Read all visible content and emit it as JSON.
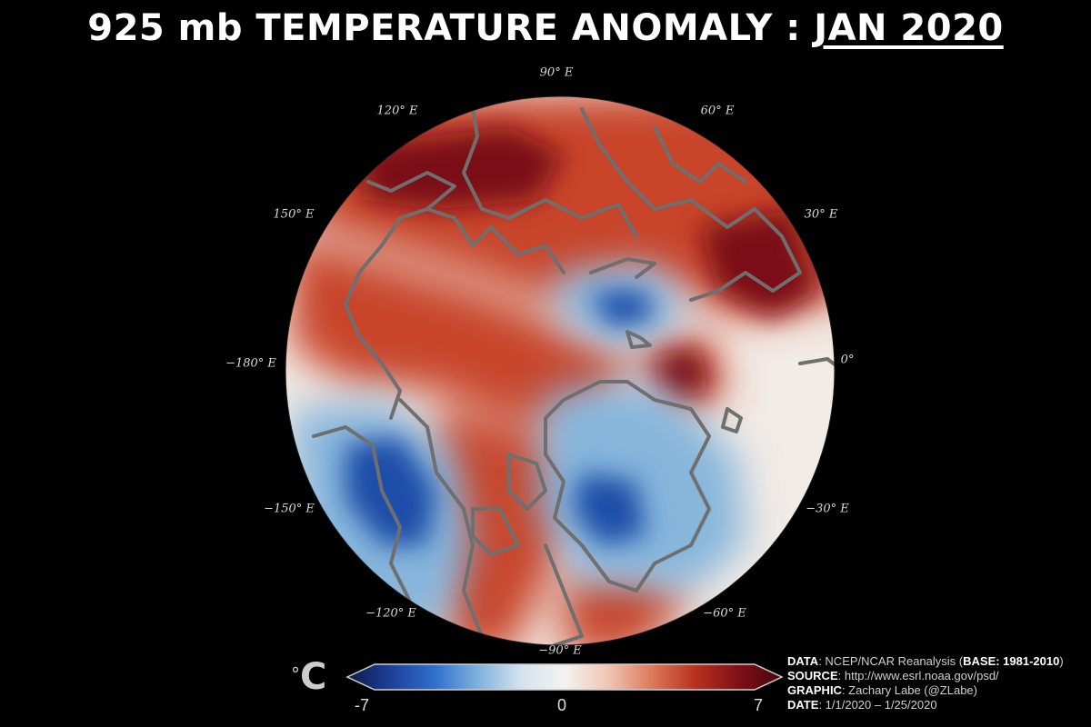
{
  "title": {
    "prefix": "925 mb TEMPERATURE ANOMALY : ",
    "date": "JAN 2020"
  },
  "longitude_labels": [
    {
      "id": "lon-90e",
      "text": "90° E"
    },
    {
      "id": "lon-60e",
      "text": "60° E"
    },
    {
      "id": "lon-120e",
      "text": "120° E"
    },
    {
      "id": "lon-30e",
      "text": "30° E"
    },
    {
      "id": "lon-150e",
      "text": "150° E"
    },
    {
      "id": "lon-0",
      "text": "0°"
    },
    {
      "id": "lon-180e",
      "text": "−180° E"
    },
    {
      "id": "lon-m30e",
      "text": "−30° E"
    },
    {
      "id": "lon-m150e",
      "text": "−150° E"
    },
    {
      "id": "lon-m60e",
      "text": "−60° E"
    },
    {
      "id": "lon-m120e",
      "text": "−120° E"
    },
    {
      "id": "lon-m90e",
      "text": "−90° E"
    }
  ],
  "colorbar": {
    "unit_degree": "°",
    "unit_letter": "C",
    "min_label": "-7",
    "mid_label": "0",
    "max_label": "7",
    "min": -7,
    "max": 7,
    "colors": [
      "#0b1a48",
      "#1e3f9a",
      "#2f6fcc",
      "#7fb0de",
      "#d4e3ef",
      "#f4f2f0",
      "#f0c6b4",
      "#dc7a5c",
      "#b8321f",
      "#801016",
      "#45060a"
    ]
  },
  "credits": {
    "data_label": "DATA",
    "data_value": ": NCEP/NCAR Reanalysis (",
    "base_label": "BASE: 1981-2010",
    "data_close": ")",
    "source_label": "SOURCE",
    "source_value": ": http://www.esrl.noaa.gov/psd/",
    "graphic_label": "GRAPHIC",
    "graphic_value": ": Zachary Labe (@ZLabe)",
    "date_label": "DATE",
    "date_value": ": 1/1/2020 – 1/25/2020"
  },
  "map_colors": {
    "neutral": "#f2ebe6",
    "warm": "#c8452c",
    "hot": "#7a0f16",
    "cool": "#86b5dc",
    "cold": "#1f4ea8",
    "coast": "#6f6f6f"
  }
}
